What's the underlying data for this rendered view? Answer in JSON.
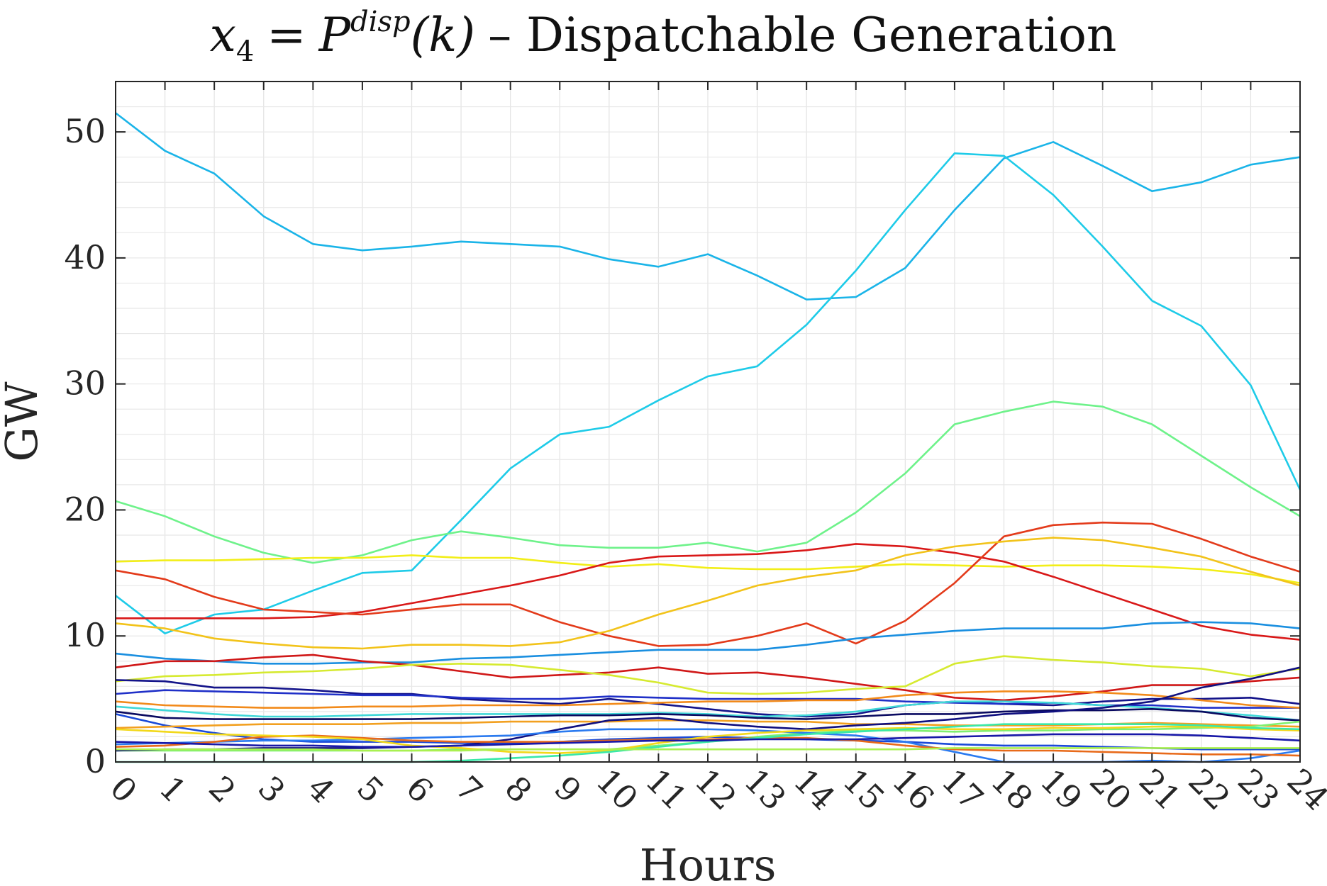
{
  "chart_data": {
    "type": "line",
    "title": {
      "math_var": "x",
      "math_sub": "4",
      "equals": "=",
      "math_P": "P",
      "math_sup": "disp",
      "math_arg": "(k)",
      "rest": "– Dispatchable Generation"
    },
    "xlabel": "Hours",
    "ylabel": "GW",
    "xlim": [
      0,
      24
    ],
    "ylim": [
      0,
      54
    ],
    "grid": true,
    "x_ticks": [
      0,
      1,
      2,
      3,
      4,
      5,
      6,
      7,
      8,
      9,
      10,
      11,
      12,
      13,
      14,
      15,
      16,
      17,
      18,
      19,
      20,
      21,
      22,
      23,
      24
    ],
    "x_tick_labels": [
      "0",
      "1",
      "2",
      "3",
      "4",
      "5",
      "6",
      "7",
      "8",
      "9",
      "10",
      "11",
      "12",
      "13",
      "14",
      "15",
      "16",
      "17",
      "18",
      "19",
      "20",
      "21",
      "22",
      "23",
      "24"
    ],
    "y_ticks": [
      0,
      10,
      20,
      30,
      40,
      50
    ],
    "y_tick_labels": [
      "0",
      "10",
      "20",
      "30",
      "40",
      "50"
    ],
    "x": [
      0,
      1,
      2,
      3,
      4,
      5,
      6,
      7,
      8,
      9,
      10,
      11,
      12,
      13,
      14,
      15,
      16,
      17,
      18,
      19,
      20,
      21,
      22,
      23,
      24
    ],
    "series": [
      {
        "color": "#1ab4e8",
        "values": [
          51.5,
          48.5,
          46.7,
          43.3,
          41.1,
          40.6,
          40.9,
          41.3,
          41.1,
          40.9,
          39.9,
          39.3,
          40.3,
          38.6,
          36.7,
          36.9,
          39.2,
          43.8,
          47.9,
          49.2,
          47.3,
          45.3,
          46.0,
          47.4,
          48.0
        ]
      },
      {
        "color": "#1ecbe8",
        "values": [
          13.2,
          10.2,
          11.7,
          12.1,
          13.6,
          15.0,
          15.2,
          19.2,
          23.3,
          26.0,
          26.6,
          28.7,
          30.6,
          31.4,
          34.7,
          39.0,
          43.8,
          48.3,
          48.1,
          45.0,
          40.9,
          36.6,
          34.6,
          29.9,
          21.6
        ]
      },
      {
        "color": "#6ef28a",
        "values": [
          20.7,
          19.5,
          17.9,
          16.6,
          15.8,
          16.4,
          17.6,
          18.3,
          17.8,
          17.2,
          17.0,
          17.0,
          17.4,
          16.7,
          17.4,
          19.8,
          22.9,
          26.8,
          27.8,
          28.6,
          28.2,
          26.8,
          24.3,
          21.8,
          19.5
        ]
      },
      {
        "color": "#f2ee18",
        "values": [
          15.9,
          16.0,
          16.0,
          16.1,
          16.2,
          16.2,
          16.4,
          16.2,
          16.2,
          15.8,
          15.5,
          15.7,
          15.4,
          15.3,
          15.3,
          15.5,
          15.7,
          15.6,
          15.5,
          15.6,
          15.6,
          15.5,
          15.3,
          14.9,
          14.2
        ]
      },
      {
        "color": "#d91818",
        "values": [
          11.4,
          11.4,
          11.4,
          11.4,
          11.5,
          11.9,
          12.6,
          13.3,
          14.0,
          14.8,
          15.8,
          16.3,
          16.4,
          16.5,
          16.8,
          17.3,
          17.1,
          16.6,
          15.9,
          14.7,
          13.4,
          12.1,
          10.8,
          10.1,
          9.7
        ]
      },
      {
        "color": "#e33a1a",
        "values": [
          15.2,
          14.5,
          13.1,
          12.1,
          11.9,
          11.7,
          12.1,
          12.5,
          12.5,
          11.1,
          10.0,
          9.2,
          9.3,
          10.0,
          11.0,
          9.4,
          11.2,
          14.2,
          17.9,
          18.8,
          19.0,
          18.9,
          17.7,
          16.3,
          15.1
        ]
      },
      {
        "color": "#f2c31a",
        "values": [
          11.0,
          10.6,
          9.8,
          9.4,
          9.1,
          9.0,
          9.3,
          9.3,
          9.2,
          9.5,
          10.4,
          11.7,
          12.8,
          14.0,
          14.7,
          15.2,
          16.4,
          17.1,
          17.5,
          17.8,
          17.6,
          17.0,
          16.3,
          15.1,
          14.0
        ]
      },
      {
        "color": "#1a8fe0",
        "values": [
          8.6,
          8.2,
          8.0,
          7.8,
          7.8,
          7.9,
          7.9,
          8.2,
          8.3,
          8.5,
          8.7,
          8.9,
          8.9,
          8.9,
          9.3,
          9.8,
          10.1,
          10.4,
          10.6,
          10.6,
          10.6,
          11.0,
          11.1,
          11.0,
          10.6
        ]
      },
      {
        "color": "#d01818",
        "values": [
          7.5,
          8.0,
          8.0,
          8.3,
          8.5,
          8.0,
          7.7,
          7.2,
          6.7,
          6.9,
          7.1,
          7.5,
          7.0,
          7.1,
          6.7,
          6.2,
          5.7,
          5.1,
          4.9,
          5.2,
          5.6,
          6.1,
          6.1,
          6.4,
          6.7
        ]
      },
      {
        "color": "#d6ea30",
        "values": [
          6.4,
          6.8,
          6.9,
          7.1,
          7.2,
          7.4,
          7.7,
          7.8,
          7.7,
          7.3,
          6.9,
          6.3,
          5.5,
          5.4,
          5.5,
          5.8,
          6.0,
          7.8,
          8.4,
          8.1,
          7.9,
          7.6,
          7.4,
          6.8,
          7.4
        ]
      },
      {
        "color": "#14148a",
        "values": [
          6.5,
          6.4,
          5.9,
          5.9,
          5.7,
          5.4,
          5.4,
          5.0,
          4.8,
          4.6,
          5.0,
          4.6,
          4.2,
          3.8,
          3.6,
          3.8,
          4.5,
          4.8,
          4.6,
          4.5,
          4.8,
          5.0,
          5.0,
          5.1,
          4.6
        ]
      },
      {
        "color": "#2030c8",
        "values": [
          5.4,
          5.7,
          5.6,
          5.5,
          5.4,
          5.3,
          5.3,
          5.1,
          5.0,
          5.0,
          5.2,
          5.1,
          5.0,
          5.0,
          5.0,
          5.0,
          4.8,
          4.7,
          4.6,
          4.7,
          4.5,
          4.5,
          4.3,
          4.3,
          4.3
        ]
      },
      {
        "color": "#f28a1a",
        "values": [
          4.8,
          4.5,
          4.4,
          4.3,
          4.3,
          4.4,
          4.4,
          4.5,
          4.5,
          4.5,
          4.6,
          4.7,
          4.8,
          4.8,
          4.9,
          4.9,
          5.3,
          5.5,
          5.6,
          5.6,
          5.5,
          5.3,
          4.9,
          4.5,
          4.3
        ]
      },
      {
        "color": "#40d8d8",
        "values": [
          4.4,
          4.1,
          3.8,
          3.6,
          3.6,
          3.7,
          3.8,
          3.8,
          3.8,
          3.8,
          3.8,
          3.9,
          3.8,
          3.6,
          3.7,
          4.0,
          4.5,
          4.8,
          4.8,
          4.7,
          4.5,
          4.3,
          4.0,
          3.7,
          3.3
        ]
      },
      {
        "color": "#0a0a60",
        "values": [
          4.0,
          3.5,
          3.4,
          3.4,
          3.4,
          3.4,
          3.4,
          3.5,
          3.6,
          3.7,
          3.7,
          3.8,
          3.7,
          3.5,
          3.4,
          3.6,
          3.8,
          3.8,
          4.0,
          4.1,
          4.1,
          4.2,
          4.0,
          3.5,
          3.3
        ]
      },
      {
        "color": "#1a4ad8",
        "values": [
          3.8,
          2.9,
          2.3,
          1.8,
          1.6,
          1.6,
          1.6,
          1.5,
          1.5,
          1.6,
          1.8,
          1.9,
          2.0,
          1.9,
          1.8,
          1.7,
          1.6,
          1.4,
          1.3,
          1.3,
          1.2,
          1.1,
          1.0,
          1.0,
          1.0
        ]
      },
      {
        "color": "#f2a020",
        "values": [
          2.7,
          2.8,
          2.9,
          3.0,
          3.0,
          3.0,
          3.1,
          3.1,
          3.2,
          3.2,
          3.2,
          3.3,
          3.3,
          3.2,
          3.2,
          3.0,
          3.0,
          2.9,
          2.9,
          2.9,
          3.0,
          3.1,
          3.0,
          2.9,
          2.8
        ]
      },
      {
        "color": "#80f070",
        "values": [
          0.9,
          0.9,
          0.9,
          0.9,
          0.9,
          0.9,
          0.9,
          1.0,
          1.0,
          1.0,
          1.0,
          1.3,
          1.6,
          2.0,
          2.3,
          2.5,
          2.5,
          2.4,
          2.5,
          2.5,
          2.6,
          2.6,
          2.7,
          2.8,
          3.2
        ]
      },
      {
        "color": "#101080",
        "values": [
          0.9,
          1.0,
          1.0,
          1.1,
          1.1,
          1.1,
          1.2,
          1.3,
          1.8,
          2.6,
          3.3,
          3.5,
          3.1,
          2.8,
          2.6,
          2.9,
          3.1,
          3.4,
          3.8,
          4.0,
          4.3,
          4.8,
          5.9,
          6.6,
          7.5
        ]
      },
      {
        "color": "#2a7af0",
        "values": [
          1.4,
          1.5,
          1.6,
          1.7,
          1.7,
          1.8,
          1.9,
          2.0,
          2.1,
          2.4,
          2.6,
          2.6,
          2.6,
          2.5,
          2.3,
          2.1,
          1.6,
          0.8,
          0.0,
          0.0,
          0.0,
          0.1,
          0.0,
          0.3,
          0.9
        ]
      },
      {
        "color": "#e86a1a",
        "values": [
          1.2,
          1.3,
          1.6,
          2.0,
          2.1,
          1.9,
          1.7,
          1.6,
          1.6,
          1.6,
          1.7,
          1.8,
          1.8,
          1.9,
          1.9,
          1.7,
          1.3,
          1.0,
          0.9,
          0.9,
          0.8,
          0.7,
          0.6,
          0.6,
          0.5
        ]
      },
      {
        "color": "#f2d81a",
        "values": [
          2.6,
          2.4,
          2.2,
          2.1,
          2.0,
          1.8,
          1.3,
          1.1,
          0.8,
          0.7,
          0.9,
          1.5,
          2.0,
          2.3,
          2.5,
          2.6,
          2.7,
          2.6,
          2.6,
          2.7,
          2.7,
          2.8,
          2.8,
          2.6,
          2.5
        ]
      },
      {
        "color": "#3ae8a8",
        "values": [
          0.0,
          0.0,
          0.0,
          0.0,
          0.0,
          0.0,
          0.0,
          0.1,
          0.3,
          0.5,
          0.8,
          1.2,
          1.6,
          1.9,
          2.2,
          2.4,
          2.6,
          2.8,
          3.0,
          3.0,
          3.0,
          3.0,
          2.9,
          2.7,
          2.6
        ]
      },
      {
        "color": "#aaf050",
        "values": [
          1.0,
          1.0,
          1.0,
          1.0,
          1.0,
          0.9,
          0.9,
          0.9,
          1.0,
          1.0,
          1.0,
          1.0,
          1.0,
          1.0,
          1.0,
          1.0,
          1.0,
          1.1,
          1.1,
          1.1,
          1.1,
          1.1,
          1.1,
          1.1,
          1.1
        ]
      },
      {
        "color": "#1818a8",
        "values": [
          1.6,
          1.5,
          1.4,
          1.3,
          1.3,
          1.2,
          1.2,
          1.3,
          1.4,
          1.5,
          1.6,
          1.7,
          1.7,
          1.8,
          1.8,
          1.8,
          1.9,
          2.0,
          2.1,
          2.2,
          2.2,
          2.2,
          2.1,
          1.9,
          1.7
        ]
      }
    ]
  }
}
